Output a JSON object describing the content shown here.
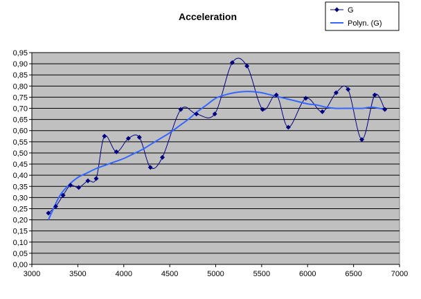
{
  "chart_data": {
    "type": "line",
    "title": "Acceleration",
    "xlim": [
      3000,
      7000
    ],
    "ylim": [
      0,
      0.95
    ],
    "x_ticks": [
      "3000",
      "3500",
      "4000",
      "4500",
      "5000",
      "5500",
      "6000",
      "6500",
      "7000"
    ],
    "y_ticks": [
      "0,00",
      "0,05",
      "0,10",
      "0,15",
      "0,20",
      "0,25",
      "0,30",
      "0,35",
      "0,40",
      "0,45",
      "0,50",
      "0,55",
      "0,60",
      "0,65",
      "0,70",
      "0,75",
      "0,80",
      "0,85",
      "0,90",
      "0,95"
    ],
    "grid": "horizontal",
    "legend_position": "top-right",
    "plot_background": "#c0c0c0",
    "series": [
      {
        "name": "G",
        "style": "smoothed line with diamond markers",
        "color": "#000080",
        "x": [
          3180,
          3260,
          3340,
          3420,
          3510,
          3610,
          3700,
          3790,
          3920,
          4050,
          4170,
          4290,
          4420,
          4620,
          4790,
          4990,
          5180,
          5340,
          5510,
          5660,
          5790,
          5980,
          6160,
          6310,
          6440,
          6590,
          6730,
          6840
        ],
        "y": [
          0.23,
          0.26,
          0.31,
          0.355,
          0.345,
          0.375,
          0.385,
          0.575,
          0.505,
          0.565,
          0.57,
          0.435,
          0.48,
          0.695,
          0.675,
          0.675,
          0.905,
          0.89,
          0.695,
          0.76,
          0.615,
          0.745,
          0.685,
          0.77,
          0.785,
          0.56,
          0.76,
          0.695
        ]
      },
      {
        "name": "Polyn. (G)",
        "style": "polynomial trendline",
        "color": "#3366ff",
        "x": [
          3180,
          3300,
          3400,
          3500,
          3600,
          3700,
          3800,
          3900,
          4000,
          4100,
          4200,
          4300,
          4400,
          4500,
          4600,
          4700,
          4800,
          4900,
          5000,
          5100,
          5200,
          5300,
          5400,
          5500,
          5600,
          5700,
          5800,
          5900,
          6000,
          6100,
          6200,
          6300,
          6400,
          6500,
          6600,
          6700,
          6840
        ],
        "y": [
          0.2,
          0.305,
          0.355,
          0.39,
          0.41,
          0.43,
          0.445,
          0.46,
          0.475,
          0.495,
          0.515,
          0.54,
          0.565,
          0.59,
          0.62,
          0.65,
          0.685,
          0.715,
          0.745,
          0.76,
          0.77,
          0.775,
          0.775,
          0.77,
          0.76,
          0.75,
          0.74,
          0.73,
          0.72,
          0.715,
          0.705,
          0.7,
          0.7,
          0.7,
          0.7,
          0.705,
          0.695
        ]
      }
    ]
  }
}
